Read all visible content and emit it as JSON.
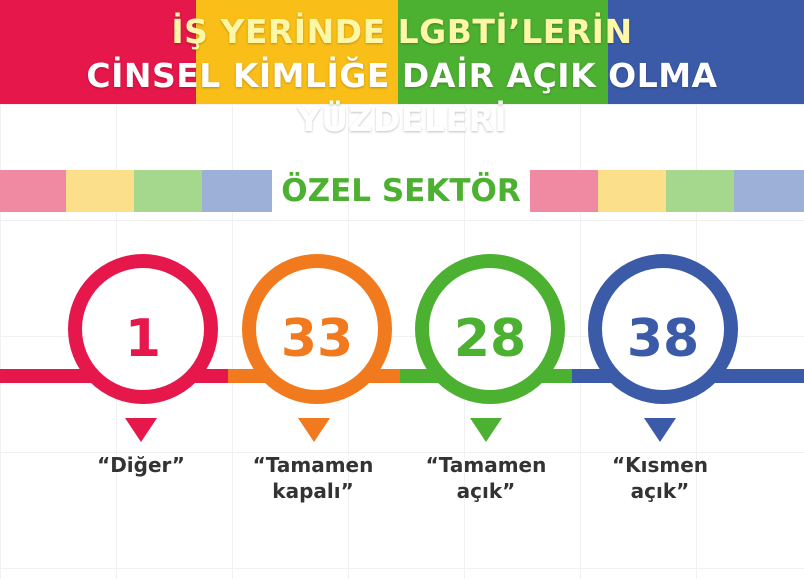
{
  "colors": {
    "red": "#e6174a",
    "yellow": "#f9be17",
    "green": "#4cb030",
    "blue": "#3b5ba8",
    "orange": "#f27a1e",
    "light_red": "#f08aa2",
    "light_yellow": "#fbdf8a",
    "light_green": "#a5d88d",
    "light_blue": "#9cb0d8",
    "text": "#333333"
  },
  "header": {
    "line1": "İŞ YERİNDE LGBTİ’LERİN",
    "line2": "CİNSEL KİMLİĞE DAİR AÇIK OLMA YÜZDELERİ"
  },
  "sector": {
    "label": "ÖZEL SEKTÖR"
  },
  "stats": [
    {
      "value": "1",
      "caption_line1": "“Diğer”",
      "caption_line2": ""
    },
    {
      "value": "33",
      "caption_line1": "“Tamamen",
      "caption_line2": "kapalı”"
    },
    {
      "value": "28",
      "caption_line1": "“Tamamen",
      "caption_line2": "açık”"
    },
    {
      "value": "38",
      "caption_line1": "“Kısmen",
      "caption_line2": "açık”"
    }
  ]
}
